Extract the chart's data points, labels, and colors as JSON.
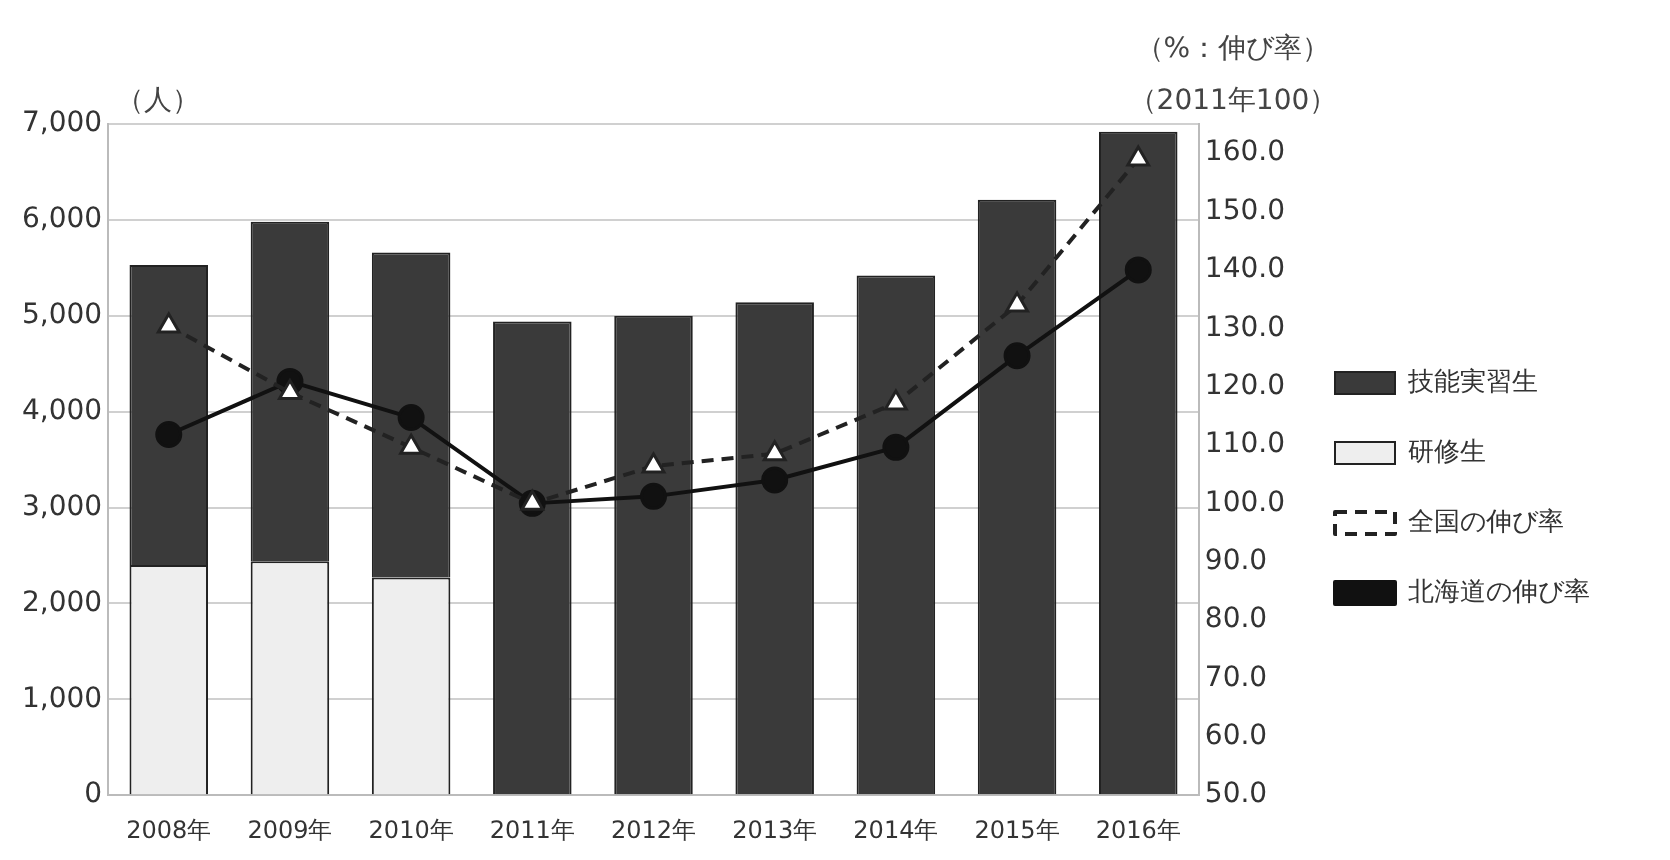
{
  "chart_data": {
    "type": "bar",
    "stacked": true,
    "ylabel": "（人）",
    "y2label": "（%：伸び率）",
    "annotations": [
      "（2011年100）"
    ],
    "categories": [
      "2008年",
      "2009年",
      "2010年",
      "2011年",
      "2012年",
      "2013年",
      "2014年",
      "2015年",
      "2016年"
    ],
    "series": [
      {
        "name": "研修生",
        "color": "#eeeeee",
        "values": [
          2400,
          2440,
          2270,
          null,
          null,
          null,
          null,
          null,
          null
        ]
      },
      {
        "name": "技能実習生",
        "color": "#3a3a3a",
        "values": [
          3130,
          3540,
          3390,
          4940,
          5000,
          5140,
          5420,
          6210,
          6920
        ]
      },
      {
        "name": "全国の伸び率",
        "type": "line",
        "axis": "y2",
        "color": "#222222",
        "line_style": "dashed",
        "marker": "triangle",
        "values": [
          130.4,
          119,
          109.6,
          100,
          106.4,
          108.5,
          117.2,
          134,
          159
        ]
      },
      {
        "name": "北海道の伸び率",
        "type": "line",
        "axis": "y2",
        "color": "#111111",
        "line_style": "solid",
        "marker": "circle",
        "values": [
          111.8,
          120.9,
          114.7,
          100,
          101.2,
          104,
          109.6,
          125.3,
          140
        ]
      }
    ],
    "ylim": [
      0,
      7000
    ],
    "yticks": [
      {
        "value": 0,
        "label": "0"
      },
      {
        "value": 1000,
        "label": "1,000"
      },
      {
        "value": 2000,
        "label": "2,000"
      },
      {
        "value": 3000,
        "label": "3,000"
      },
      {
        "value": 4000,
        "label": "4,000"
      },
      {
        "value": 5000,
        "label": "5,000"
      },
      {
        "value": 6000,
        "label": "6,000"
      },
      {
        "value": 7000,
        "label": "7,000"
      }
    ],
    "y2lim": [
      50,
      165
    ],
    "y2ticks": [
      {
        "value": 50,
        "label": "50.0"
      },
      {
        "value": 60,
        "label": "60.0"
      },
      {
        "value": 70,
        "label": "70.0"
      },
      {
        "value": 80,
        "label": "80.0"
      },
      {
        "value": 90,
        "label": "90.0"
      },
      {
        "value": 100,
        "label": "100.0"
      },
      {
        "value": 110,
        "label": "110.0"
      },
      {
        "value": 120,
        "label": "120.0"
      },
      {
        "value": 130,
        "label": "130.0"
      },
      {
        "value": 140,
        "label": "140.0"
      },
      {
        "value": 150,
        "label": "150.0"
      },
      {
        "value": 160,
        "label": "160.0"
      }
    ],
    "grid": "y",
    "legend": "right"
  }
}
